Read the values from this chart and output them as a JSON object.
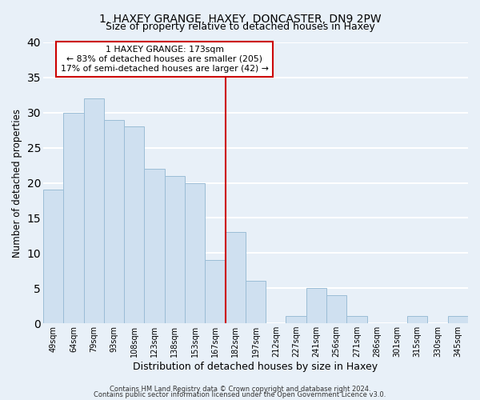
{
  "title": "1, HAXEY GRANGE, HAXEY, DONCASTER, DN9 2PW",
  "subtitle": "Size of property relative to detached houses in Haxey",
  "xlabel": "Distribution of detached houses by size in Haxey",
  "ylabel": "Number of detached properties",
  "bar_labels": [
    "49sqm",
    "64sqm",
    "79sqm",
    "93sqm",
    "108sqm",
    "123sqm",
    "138sqm",
    "153sqm",
    "167sqm",
    "182sqm",
    "197sqm",
    "212sqm",
    "227sqm",
    "241sqm",
    "256sqm",
    "271sqm",
    "286sqm",
    "301sqm",
    "315sqm",
    "330sqm",
    "345sqm"
  ],
  "bar_values": [
    19,
    30,
    32,
    29,
    28,
    22,
    21,
    20,
    9,
    13,
    6,
    0,
    1,
    5,
    4,
    1,
    0,
    0,
    1,
    0,
    1
  ],
  "bar_color": "#cfe0f0",
  "bar_edge_color": "#9bbdd6",
  "vline_x_index": 8,
  "vline_color": "#cc0000",
  "annotation_line1": "1 HAXEY GRANGE: 173sqm",
  "annotation_line2": "← 83% of detached houses are smaller (205)",
  "annotation_line3": "17% of semi-detached houses are larger (42) →",
  "annotation_box_color": "#ffffff",
  "annotation_box_edge": "#cc0000",
  "ylim": [
    0,
    40
  ],
  "yticks": [
    0,
    5,
    10,
    15,
    20,
    25,
    30,
    35,
    40
  ],
  "footer1": "Contains HM Land Registry data © Crown copyright and database right 2024.",
  "footer2": "Contains public sector information licensed under the Open Government Licence v3.0.",
  "bg_color": "#e8f0f8",
  "plot_bg_color": "#e8f0f8",
  "grid_color": "#ffffff",
  "title_fontsize": 10,
  "subtitle_fontsize": 9
}
